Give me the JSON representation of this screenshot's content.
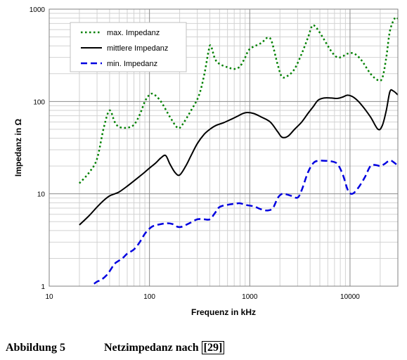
{
  "chart_data": {
    "type": "line",
    "xscale": "log",
    "yscale": "log",
    "xlim": [
      10,
      30000
    ],
    "ylim": [
      1,
      1000
    ],
    "xlabel": "Frequenz in kHz",
    "ylabel": "Impedanz in Ω",
    "xticks": [
      10,
      100,
      1000,
      10000
    ],
    "xtick_labels": [
      "10",
      "100",
      "1000",
      "10000"
    ],
    "yticks": [
      1,
      10,
      100,
      1000
    ],
    "ytick_labels": [
      "1",
      "10",
      "100",
      "1000"
    ],
    "grid": true,
    "legend_position": "top-left",
    "series": [
      {
        "name": "max. Impedanz",
        "color": "#008000",
        "dash": "dotted",
        "points": [
          [
            20,
            13
          ],
          [
            25,
            17
          ],
          [
            30,
            24
          ],
          [
            35,
            52
          ],
          [
            40,
            80
          ],
          [
            45,
            60
          ],
          [
            50,
            53
          ],
          [
            60,
            52
          ],
          [
            70,
            56
          ],
          [
            80,
            72
          ],
          [
            90,
            100
          ],
          [
            100,
            118
          ],
          [
            110,
            120
          ],
          [
            130,
            100
          ],
          [
            160,
            68
          ],
          [
            190,
            52
          ],
          [
            210,
            55
          ],
          [
            260,
            80
          ],
          [
            310,
            115
          ],
          [
            350,
            190
          ],
          [
            390,
            360
          ],
          [
            410,
            400
          ],
          [
            450,
            290
          ],
          [
            500,
            255
          ],
          [
            600,
            235
          ],
          [
            700,
            225
          ],
          [
            800,
            240
          ],
          [
            900,
            300
          ],
          [
            1000,
            370
          ],
          [
            1300,
            430
          ],
          [
            1500,
            490
          ],
          [
            1650,
            450
          ],
          [
            1900,
            250
          ],
          [
            2100,
            185
          ],
          [
            2400,
            190
          ],
          [
            2800,
            225
          ],
          [
            3300,
            330
          ],
          [
            3800,
            490
          ],
          [
            4200,
            660
          ],
          [
            4600,
            630
          ],
          [
            5200,
            520
          ],
          [
            6500,
            350
          ],
          [
            7500,
            300
          ],
          [
            8500,
            310
          ],
          [
            9500,
            330
          ],
          [
            11000,
            330
          ],
          [
            13000,
            280
          ],
          [
            16000,
            200
          ],
          [
            19000,
            170
          ],
          [
            21000,
            180
          ],
          [
            23000,
            300
          ],
          [
            25000,
            580
          ],
          [
            28000,
            800
          ],
          [
            30000,
            790
          ]
        ]
      },
      {
        "name": "mittlere Impedanz",
        "color": "#000000",
        "dash": "solid",
        "points": [
          [
            20,
            4.6
          ],
          [
            25,
            5.8
          ],
          [
            30,
            7.2
          ],
          [
            35,
            8.5
          ],
          [
            40,
            9.5
          ],
          [
            45,
            10
          ],
          [
            50,
            10.5
          ],
          [
            60,
            12.1
          ],
          [
            70,
            13.8
          ],
          [
            80,
            15.5
          ],
          [
            90,
            17.2
          ],
          [
            100,
            19
          ],
          [
            115,
            21.5
          ],
          [
            130,
            24.5
          ],
          [
            145,
            26
          ],
          [
            160,
            21
          ],
          [
            180,
            17
          ],
          [
            200,
            16
          ],
          [
            230,
            20
          ],
          [
            260,
            26
          ],
          [
            300,
            35
          ],
          [
            350,
            44
          ],
          [
            400,
            50
          ],
          [
            460,
            55
          ],
          [
            550,
            59
          ],
          [
            650,
            64
          ],
          [
            750,
            69
          ],
          [
            850,
            74
          ],
          [
            950,
            76
          ],
          [
            1100,
            74
          ],
          [
            1300,
            68
          ],
          [
            1600,
            60
          ],
          [
            1900,
            47
          ],
          [
            2100,
            41
          ],
          [
            2400,
            42
          ],
          [
            2800,
            50
          ],
          [
            3300,
            60
          ],
          [
            3800,
            74
          ],
          [
            4300,
            88
          ],
          [
            4800,
            103
          ],
          [
            5500,
            109
          ],
          [
            6500,
            109
          ],
          [
            7500,
            108
          ],
          [
            8500,
            112
          ],
          [
            9500,
            117
          ],
          [
            11000,
            110
          ],
          [
            13000,
            92
          ],
          [
            16000,
            68
          ],
          [
            19000,
            50
          ],
          [
            21000,
            55
          ],
          [
            23000,
            80
          ],
          [
            25000,
            128
          ],
          [
            27000,
            130
          ],
          [
            30000,
            118
          ]
        ]
      },
      {
        "name": "min. Impedanz",
        "color": "#0000e0",
        "dash": "dashed",
        "points": [
          [
            28,
            1.06
          ],
          [
            30,
            1.12
          ],
          [
            33,
            1.17
          ],
          [
            37,
            1.3
          ],
          [
            40,
            1.45
          ],
          [
            45,
            1.75
          ],
          [
            50,
            1.9
          ],
          [
            55,
            2.05
          ],
          [
            60,
            2.25
          ],
          [
            70,
            2.5
          ],
          [
            80,
            3.0
          ],
          [
            90,
            3.7
          ],
          [
            100,
            4.2
          ],
          [
            110,
            4.5
          ],
          [
            130,
            4.7
          ],
          [
            150,
            4.8
          ],
          [
            170,
            4.7
          ],
          [
            190,
            4.4
          ],
          [
            210,
            4.4
          ],
          [
            250,
            4.8
          ],
          [
            300,
            5.3
          ],
          [
            350,
            5.3
          ],
          [
            400,
            5.3
          ],
          [
            450,
            6.2
          ],
          [
            500,
            7.2
          ],
          [
            600,
            7.6
          ],
          [
            700,
            7.8
          ],
          [
            800,
            7.9
          ],
          [
            900,
            7.6
          ],
          [
            1100,
            7.3
          ],
          [
            1300,
            6.8
          ],
          [
            1500,
            6.6
          ],
          [
            1700,
            7.0
          ],
          [
            1900,
            9.0
          ],
          [
            2100,
            10
          ],
          [
            2300,
            9.9
          ],
          [
            2600,
            9.5
          ],
          [
            3000,
            9.1
          ],
          [
            3300,
            11
          ],
          [
            3800,
            17
          ],
          [
            4300,
            21.5
          ],
          [
            4800,
            22.8
          ],
          [
            5500,
            22.8
          ],
          [
            6500,
            22.5
          ],
          [
            7500,
            21
          ],
          [
            8500,
            16
          ],
          [
            9500,
            11
          ],
          [
            10500,
            10
          ],
          [
            12000,
            11.5
          ],
          [
            14000,
            15
          ],
          [
            16000,
            20
          ],
          [
            18000,
            20.5
          ],
          [
            20000,
            20
          ],
          [
            22000,
            21
          ],
          [
            25000,
            23
          ],
          [
            28000,
            21.5
          ],
          [
            30000,
            20
          ]
        ]
      }
    ]
  },
  "caption": {
    "label": "Abbildung 5",
    "text": "Netzimpedanz nach",
    "ref": "[29]"
  }
}
